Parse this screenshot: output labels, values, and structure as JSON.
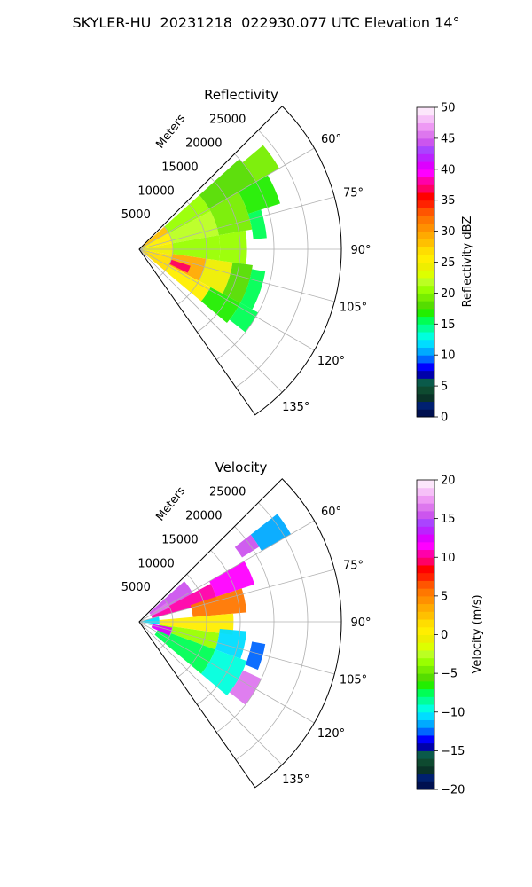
{
  "figure": {
    "title": "SKYLER-HU  20231218  022930.077 UTC Elevation 14°"
  },
  "chart_data": [
    {
      "type": "heatmap",
      "projection": "polar-sector",
      "title": "Reflectivity",
      "range_axis_label": "Meters",
      "range_ticks": [
        5000,
        10000,
        15000,
        20000,
        25000
      ],
      "range_lim": [
        0,
        30000
      ],
      "azimuth_lim_deg": [
        45,
        145
      ],
      "azimuth_ticks": [
        "60°",
        "75°",
        "90°",
        "105°",
        "120°",
        "135°"
      ],
      "grid": true,
      "colorbar": {
        "label": "Reflectivity dBZ",
        "range": [
          0,
          50
        ],
        "ticks": [
          0,
          5,
          10,
          15,
          20,
          25,
          30,
          35,
          40,
          45,
          50
        ],
        "tick_labels": [
          "0",
          "5",
          "10",
          "15",
          "20",
          "25",
          "30",
          "35",
          "40",
          "45",
          "50"
        ],
        "colors": [
          "#001050",
          "#002070",
          "#0a3328",
          "#0e4a30",
          "#0a5a4a",
          "#0000aa",
          "#0000ff",
          "#0066ff",
          "#00aaff",
          "#00ddff",
          "#00ffdd",
          "#00ff99",
          "#00ff55",
          "#22ee00",
          "#55dd00",
          "#77ee00",
          "#99ff00",
          "#bbff22",
          "#ddff00",
          "#eeee00",
          "#ffee00",
          "#ffdd00",
          "#ffc000",
          "#ffaa00",
          "#ff9000",
          "#ff7700",
          "#ff5500",
          "#ff2200",
          "#ff0000",
          "#ff0066",
          "#ff00aa",
          "#ff00ff",
          "#dd00ff",
          "#bb22ff",
          "#aa44ff",
          "#cc55ee",
          "#dd77ee",
          "#ee99f4",
          "#f6c0f8",
          "#fce6fb"
        ]
      },
      "echo_regions": [
        {
          "az": [
            48,
            60
          ],
          "r": [
            0,
            5000
          ],
          "value": 28
        },
        {
          "az": [
            60,
            80
          ],
          "r": [
            0,
            5000
          ],
          "value": 26
        },
        {
          "az": [
            80,
            100
          ],
          "r": [
            0,
            5000
          ],
          "value": 24
        },
        {
          "az": [
            100,
            130
          ],
          "r": [
            0,
            5000
          ],
          "value": 27
        },
        {
          "az": [
            48,
            62
          ],
          "r": [
            5000,
            12000
          ],
          "value": 20
        },
        {
          "az": [
            62,
            80
          ],
          "r": [
            5000,
            12000
          ],
          "value": 22
        },
        {
          "az": [
            80,
            98
          ],
          "r": [
            5000,
            12000
          ],
          "value": 21
        },
        {
          "az": [
            98,
            118
          ],
          "r": [
            5000,
            10000
          ],
          "value": 29
        },
        {
          "az": [
            118,
            130
          ],
          "r": [
            5000,
            12000
          ],
          "value": 26
        },
        {
          "az": [
            108,
            116
          ],
          "r": [
            5000,
            8000
          ],
          "value": 37
        },
        {
          "az": [
            98,
            118
          ],
          "r": [
            10000,
            14000
          ],
          "value": 24
        },
        {
          "az": [
            48,
            60
          ],
          "r": [
            12000,
            20000
          ],
          "value": 18
        },
        {
          "az": [
            60,
            80
          ],
          "r": [
            12000,
            17000
          ],
          "value": 19
        },
        {
          "az": [
            80,
            98
          ],
          "r": [
            12000,
            16000
          ],
          "value": 20
        },
        {
          "az": [
            98,
            118
          ],
          "r": [
            14000,
            17000
          ],
          "value": 18
        },
        {
          "az": [
            118,
            130
          ],
          "r": [
            12000,
            17000
          ],
          "value": 17
        },
        {
          "az": [
            50,
            60
          ],
          "r": [
            20000,
            24000
          ],
          "value": 19
        },
        {
          "az": [
            60,
            72
          ],
          "r": [
            17000,
            22000
          ],
          "value": 17
        },
        {
          "az": [
            72,
            85
          ],
          "r": [
            17000,
            19000
          ],
          "value": 15
        },
        {
          "az": [
            100,
            118
          ],
          "r": [
            17000,
            19000
          ],
          "value": 15
        },
        {
          "az": [
            118,
            128
          ],
          "r": [
            17000,
            20000
          ],
          "value": 16
        }
      ]
    },
    {
      "type": "heatmap",
      "projection": "polar-sector",
      "title": "Velocity",
      "range_axis_label": "Meters",
      "range_ticks": [
        5000,
        10000,
        15000,
        20000,
        25000
      ],
      "range_lim": [
        0,
        30000
      ],
      "azimuth_lim_deg": [
        45,
        145
      ],
      "azimuth_ticks": [
        "60°",
        "75°",
        "90°",
        "105°",
        "120°",
        "135°"
      ],
      "grid": true,
      "colorbar": {
        "label": "Velocity (m/s)",
        "range": [
          -20,
          20
        ],
        "ticks": [
          -20,
          -15,
          -10,
          -5,
          0,
          5,
          10,
          15,
          20
        ],
        "tick_labels": [
          "−20",
          "−15",
          "−10",
          "−5",
          "0",
          "5",
          "10",
          "15",
          "20"
        ],
        "colors": [
          "#001050",
          "#002070",
          "#0a3328",
          "#0e4a30",
          "#0a5a4a",
          "#0000aa",
          "#0000ff",
          "#0066ff",
          "#00aaff",
          "#00ddff",
          "#00ffdd",
          "#00ff99",
          "#00ff55",
          "#22ee00",
          "#55dd00",
          "#77ee00",
          "#99ff00",
          "#bbff22",
          "#ddff00",
          "#eeee00",
          "#ffee00",
          "#ffdd00",
          "#ffc000",
          "#ffaa00",
          "#ff9000",
          "#ff7700",
          "#ff5500",
          "#ff2200",
          "#ff0000",
          "#ff0066",
          "#ff00aa",
          "#ff00ff",
          "#dd00ff",
          "#bb22ff",
          "#aa44ff",
          "#cc55ee",
          "#dd77ee",
          "#ee99f4",
          "#f6c0f8",
          "#fce6fb"
        ]
      },
      "echo_regions": [
        {
          "az": [
            48,
            62
          ],
          "r": [
            2000,
            9000
          ],
          "value": 15
        },
        {
          "az": [
            62,
            75
          ],
          "r": [
            2000,
            12000
          ],
          "value": 10
        },
        {
          "az": [
            60,
            72
          ],
          "r": [
            12000,
            18000
          ],
          "value": 11
        },
        {
          "az": [
            72,
            85
          ],
          "r": [
            8000,
            16000
          ],
          "value": 5
        },
        {
          "az": [
            85,
            98
          ],
          "r": [
            3000,
            14000
          ],
          "value": 0
        },
        {
          "az": [
            98,
            110
          ],
          "r": [
            3000,
            12000
          ],
          "value": -4
        },
        {
          "az": [
            110,
            130
          ],
          "r": [
            3000,
            12000
          ],
          "value": -8
        },
        {
          "az": [
            110,
            130
          ],
          "r": [
            12000,
            17000
          ],
          "value": -10
        },
        {
          "az": [
            95,
            110
          ],
          "r": [
            12000,
            16000
          ],
          "value": -11
        },
        {
          "az": [
            115,
            128
          ],
          "r": [
            17000,
            20000
          ],
          "value": 16
        },
        {
          "az": [
            100,
            112
          ],
          "r": [
            17000,
            19000
          ],
          "value": -13
        },
        {
          "az": [
            52,
            60
          ],
          "r": [
            21000,
            26000
          ],
          "value": -12
        },
        {
          "az": [
            52,
            58
          ],
          "r": [
            18000,
            21000
          ],
          "value": 15
        },
        {
          "az": [
            55,
            65
          ],
          "r": [
            2000,
            5000
          ],
          "value": 16
        },
        {
          "az": [
            75,
            98
          ],
          "r": [
            0,
            3000
          ],
          "value": -11
        },
        {
          "az": [
            100,
            115
          ],
          "r": [
            2000,
            5000
          ],
          "value": 12
        }
      ]
    }
  ]
}
